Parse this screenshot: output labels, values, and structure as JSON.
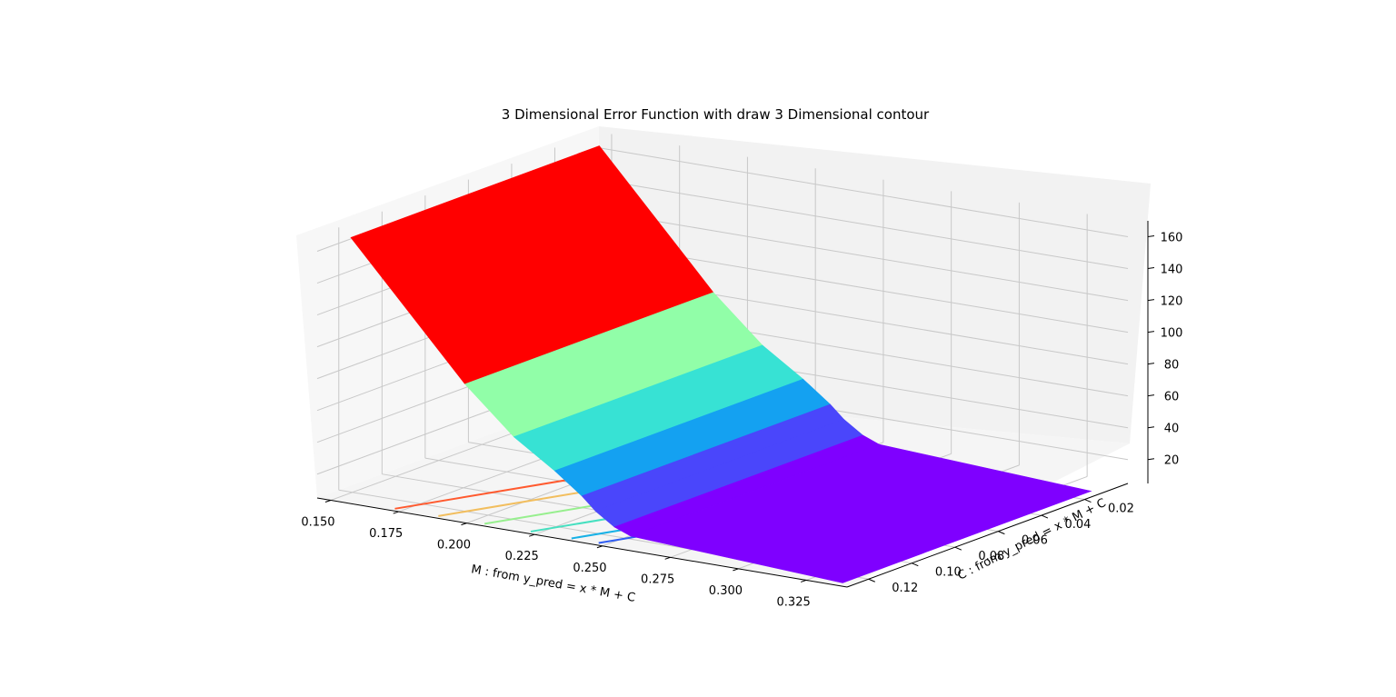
{
  "chart_data": {
    "type": "surface3d",
    "title": "3 Dimensional Error Function with draw 3 Dimensional contour",
    "xlabel": "M : from y_pred = x * M + C",
    "ylabel": "C : from y_pred = x * M + C",
    "zlabel": "",
    "x_ticks": [
      "0.150",
      "0.175",
      "0.200",
      "0.225",
      "0.250",
      "0.275",
      "0.300",
      "0.325"
    ],
    "y_ticks": [
      "0.02",
      "0.04",
      "0.06",
      "0.08",
      "0.10",
      "0.12"
    ],
    "z_ticks": [
      "20",
      "40",
      "60",
      "80",
      "100",
      "120",
      "140",
      "160"
    ],
    "xlim": [
      0.145,
      0.34
    ],
    "ylim": [
      0.0,
      0.13
    ],
    "zlim": [
      5,
      170
    ],
    "colormap": "rainbow",
    "grid": true,
    "surface_profile": {
      "description_points_M": [
        0.155,
        0.197,
        0.215,
        0.23,
        0.24,
        0.245,
        0.252,
        0.258
      ],
      "error_values": [
        170,
        90,
        62,
        45,
        32,
        24,
        16,
        12
      ],
      "error_floor": 5
    },
    "bands": [
      {
        "z_min": 90,
        "z_max": 175,
        "color": "#ff0000"
      },
      {
        "z_min": 60,
        "z_max": 90,
        "color": "#91fea8"
      },
      {
        "z_min": 45,
        "z_max": 60,
        "color": "#37e2d4"
      },
      {
        "z_min": 30,
        "z_max": 45,
        "color": "#14a1f1"
      },
      {
        "z_min": 18,
        "z_max": 30,
        "color": "#4a46fb"
      },
      {
        "z_min": 0,
        "z_max": 18,
        "color": "#7f00ff"
      }
    ],
    "contour_lines": [
      {
        "M": 0.172,
        "color": "#ff5a2f"
      },
      {
        "M": 0.188,
        "color": "#f2be5e"
      },
      {
        "M": 0.205,
        "color": "#97ef8e"
      },
      {
        "M": 0.222,
        "color": "#45e0c0"
      },
      {
        "M": 0.237,
        "color": "#17b1e6"
      },
      {
        "M": 0.247,
        "color": "#2f5df2"
      }
    ],
    "colors": {
      "pane_left": "#f7f7f7",
      "pane_back": "#f2f2f2",
      "pane_floor": "#f5f5f5",
      "grid": "#c8c8c8",
      "axis": "#000000"
    }
  }
}
